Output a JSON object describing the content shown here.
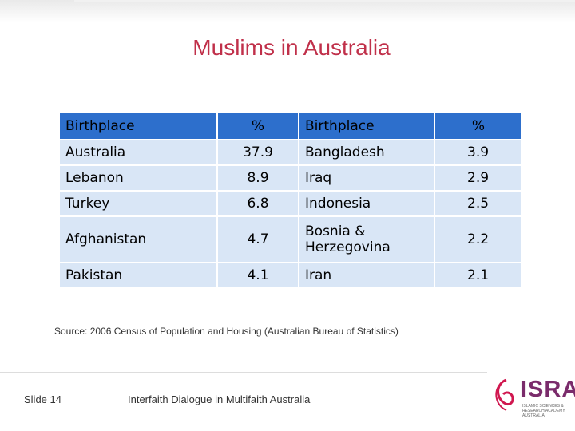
{
  "slide": {
    "title": "Muslims in Australia",
    "source": "Source: 2006 Census of Population and Housing (Australian Bureau of Statistics)",
    "slide_number": "Slide 14",
    "footer_text": "Interfaith Dialogue in Multifaith Australia"
  },
  "table": {
    "headers": [
      "Birthplace",
      "%",
      "Birthplace",
      "%"
    ],
    "rows": [
      [
        "Australia",
        "37.9",
        "Bangladesh",
        "3.9"
      ],
      [
        "Lebanon",
        "8.9",
        "Iraq",
        "2.9"
      ],
      [
        "Turkey",
        "6.8",
        "Indonesia",
        "2.5"
      ],
      [
        "Afghanistan",
        "4.7",
        "Bosnia & Herzegovina",
        "2.2"
      ],
      [
        "Pakistan",
        "4.1",
        "Iran",
        "2.1"
      ]
    ]
  },
  "logo": {
    "name": "ISRA",
    "subtitle": "ISLAMIC SCIENCES & RESEARCH ACADEMY AUSTRALIA",
    "color": "#7a2b6b",
    "accent": "#d0174f"
  },
  "colors": {
    "title": "#c0304a",
    "header_bg": "#2d6fcc",
    "row_bg": "#d9e6f6"
  }
}
